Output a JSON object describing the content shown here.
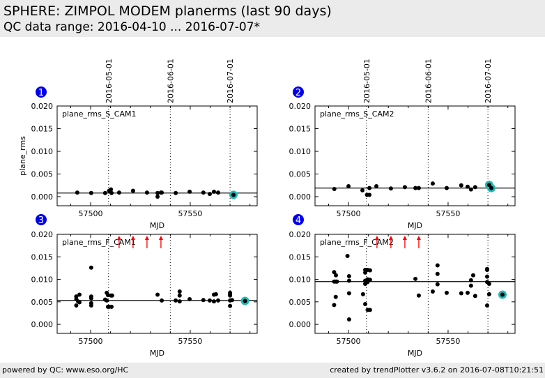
{
  "header": {
    "title": "SPHERE: ZIMPOL MODEM planerms (last 90 days)",
    "subtitle": "QC data range: 2016-04-10 ... 2016-07-07*"
  },
  "footer": {
    "left": "powered by QC: www.eso.org/HC",
    "right": "created by trendPlotter v3.6.2 on 2016-07-08T10:21:51"
  },
  "colors": {
    "point": "#000000",
    "latest_highlight": "#1fb8b8",
    "badge": "#0000ee",
    "outlier_arrow": "#ff0000",
    "median_line": "#000000"
  },
  "chart_data": [
    {
      "type": "scatter",
      "panel_number": "1",
      "label": "plane_rms_S_CAM1",
      "xlabel": "MJD",
      "ylabel": "plane_rms",
      "xlim": [
        57483.2,
        57583.6
      ],
      "ylim": [
        -0.002,
        0.02
      ],
      "xticks": [
        57500,
        57550
      ],
      "xtick_labels": [
        "57500",
        "57550"
      ],
      "xminor_step": 10,
      "yticks": [
        0.0,
        0.005,
        0.01,
        0.015,
        0.02
      ],
      "ytick_labels": [
        "0.000",
        "0.005",
        "0.010",
        "0.015",
        "0.020"
      ],
      "date_markers": [
        {
          "mjd": 57509,
          "label": "2016-05-01"
        },
        {
          "mjd": 57540,
          "label": "2016-06-01"
        },
        {
          "mjd": 57570,
          "label": "2016-07-01"
        }
      ],
      "median": 0.0008,
      "points": [
        [
          57493.3,
          0.0009
        ],
        [
          57500.3,
          0.0008
        ],
        [
          57507.3,
          0.0008
        ],
        [
          57509.3,
          0.0013
        ],
        [
          57510.2,
          0.0016
        ],
        [
          57510.5,
          0.0008
        ],
        [
          57514.3,
          0.0009
        ],
        [
          57521.3,
          0.0013
        ],
        [
          57528.3,
          0.0009
        ],
        [
          57533.6,
          0.0008
        ],
        [
          57533.6,
          0.0
        ],
        [
          57535.3,
          0.0009
        ],
        [
          57535.7,
          0.0009
        ],
        [
          57542.7,
          0.0008
        ],
        [
          57549.7,
          0.0011
        ],
        [
          57556.6,
          0.0009
        ],
        [
          57559.8,
          0.0006
        ],
        [
          57561.9,
          0.0011
        ],
        [
          57564.0,
          0.0009
        ]
      ],
      "latest_points": [
        [
          57571.7,
          0.0004
        ]
      ],
      "outliers_above": []
    },
    {
      "type": "scatter",
      "panel_number": "2",
      "label": "plane_rms_S_CAM2",
      "xlabel": "MJD",
      "ylabel": "",
      "xlim": [
        57483.2,
        57583.6
      ],
      "ylim": [
        -0.002,
        0.02
      ],
      "xticks": [
        57500,
        57550
      ],
      "xtick_labels": [
        "57500",
        "57550"
      ],
      "xminor_step": 10,
      "yticks": [
        0.0,
        0.005,
        0.01,
        0.015,
        0.02
      ],
      "ytick_labels": [
        "0.000",
        "0.005",
        "0.010",
        "0.015",
        "0.020"
      ],
      "date_markers": [
        {
          "mjd": 57509,
          "label": "2016-05-01"
        },
        {
          "mjd": 57540,
          "label": "2016-06-01"
        },
        {
          "mjd": 57570,
          "label": "2016-07-01"
        }
      ],
      "median": 0.0019,
      "points": [
        [
          57492.9,
          0.0017
        ],
        [
          57500.0,
          0.0023
        ],
        [
          57507.0,
          0.0014
        ],
        [
          57509.3,
          0.0004
        ],
        [
          57510.5,
          0.0004
        ],
        [
          57510.5,
          0.0019
        ],
        [
          57514.0,
          0.0023
        ],
        [
          57521.3,
          0.0018
        ],
        [
          57528.3,
          0.0021
        ],
        [
          57533.6,
          0.0019
        ],
        [
          57535.3,
          0.0019
        ],
        [
          57542.3,
          0.0029
        ],
        [
          57549.3,
          0.0019
        ],
        [
          57556.6,
          0.0025
        ],
        [
          57559.8,
          0.0022
        ],
        [
          57561.5,
          0.0016
        ],
        [
          57563.6,
          0.0021
        ]
      ],
      "latest_points": [
        [
          57570.6,
          0.0026
        ],
        [
          57571.7,
          0.0019
        ]
      ],
      "outliers_above": []
    },
    {
      "type": "scatter",
      "panel_number": "3",
      "label": "plane_rms_F_CAM1",
      "xlabel": "MJD",
      "ylabel": "",
      "xlim": [
        57483.2,
        57583.6
      ],
      "ylim": [
        -0.002,
        0.02
      ],
      "xticks": [
        57500,
        57550
      ],
      "xtick_labels": [
        "57500",
        "57550"
      ],
      "xminor_step": 10,
      "yticks": [
        0.0,
        0.005,
        0.01,
        0.015,
        0.02
      ],
      "ytick_labels": [
        "0.000",
        "0.005",
        "0.010",
        "0.015",
        "0.020"
      ],
      "date_markers": [
        {
          "mjd": 57509,
          "label": ""
        },
        {
          "mjd": 57540,
          "label": ""
        },
        {
          "mjd": 57570,
          "label": ""
        }
      ],
      "median": 0.0053,
      "points": [
        [
          57492.8,
          0.0062
        ],
        [
          57492.8,
          0.0056
        ],
        [
          57493.7,
          0.0051
        ],
        [
          57492.8,
          0.0042
        ],
        [
          57494.4,
          0.0066
        ],
        [
          57494.4,
          0.0049
        ],
        [
          57500.3,
          0.0126
        ],
        [
          57500.3,
          0.0062
        ],
        [
          57500.3,
          0.0058
        ],
        [
          57500.3,
          0.0047
        ],
        [
          57500.3,
          0.0042
        ],
        [
          57507.3,
          0.0055
        ],
        [
          57508.1,
          0.007
        ],
        [
          57508.1,
          0.0053
        ],
        [
          57508.7,
          0.0065
        ],
        [
          57508.7,
          0.0039
        ],
        [
          57509.3,
          0.0039
        ],
        [
          57510.2,
          0.0064
        ],
        [
          57510.5,
          0.0039
        ],
        [
          57510.8,
          0.0064
        ],
        [
          57533.6,
          0.0066
        ],
        [
          57535.7,
          0.0053
        ],
        [
          57542.7,
          0.0053
        ],
        [
          57544.7,
          0.0073
        ],
        [
          57544.7,
          0.0064
        ],
        [
          57544.7,
          0.0051
        ],
        [
          57549.7,
          0.0056
        ],
        [
          57556.6,
          0.0054
        ],
        [
          57559.8,
          0.0053
        ],
        [
          57561.9,
          0.0051
        ],
        [
          57561.9,
          0.0066
        ],
        [
          57562.9,
          0.0067
        ],
        [
          57564.0,
          0.0053
        ],
        [
          57570.0,
          0.007
        ],
        [
          57570.0,
          0.0066
        ],
        [
          57570.0,
          0.0064
        ],
        [
          57570.0,
          0.0053
        ],
        [
          57570.0,
          0.0041
        ],
        [
          57571.0,
          0.0054
        ]
      ],
      "latest_points": [
        [
          57577.5,
          0.0052
        ]
      ],
      "outliers_above": [
        57514.3,
        57521.3,
        57528.3,
        57535.3
      ]
    },
    {
      "type": "scatter",
      "panel_number": "4",
      "label": "plane_rms_F_CAM2",
      "xlabel": "MJD",
      "ylabel": "",
      "xlim": [
        57483.2,
        57583.6
      ],
      "ylim": [
        -0.002,
        0.02
      ],
      "xticks": [
        57500,
        57550
      ],
      "xtick_labels": [
        "57500",
        "57550"
      ],
      "xminor_step": 10,
      "yticks": [
        0.0,
        0.005,
        0.01,
        0.015,
        0.02
      ],
      "ytick_labels": [
        "0.000",
        "0.005",
        "0.010",
        "0.015",
        "0.020"
      ],
      "date_markers": [
        {
          "mjd": 57509,
          "label": ""
        },
        {
          "mjd": 57540,
          "label": ""
        },
        {
          "mjd": 57570,
          "label": ""
        }
      ],
      "median": 0.0095,
      "points": [
        [
          57492.8,
          0.0116
        ],
        [
          57492.8,
          0.0095
        ],
        [
          57493.7,
          0.0109
        ],
        [
          57493.7,
          0.0095
        ],
        [
          57494.2,
          0.0095
        ],
        [
          57493.6,
          0.0061
        ],
        [
          57492.8,
          0.0043
        ],
        [
          57499.5,
          0.0152
        ],
        [
          57500.3,
          0.0107
        ],
        [
          57500.3,
          0.0097
        ],
        [
          57500.3,
          0.0069
        ],
        [
          57500.3,
          0.0011
        ],
        [
          57507.3,
          0.0067
        ],
        [
          57508.4,
          0.0121
        ],
        [
          57508.4,
          0.0115
        ],
        [
          57508.4,
          0.0097
        ],
        [
          57508.4,
          0.009
        ],
        [
          57508.4,
          0.0045
        ],
        [
          57509.6,
          0.0121
        ],
        [
          57509.6,
          0.01
        ],
        [
          57509.6,
          0.0094
        ],
        [
          57509.6,
          0.0032
        ],
        [
          57510.8,
          0.012
        ],
        [
          57510.8,
          0.0099
        ],
        [
          57510.8,
          0.0032
        ],
        [
          57533.6,
          0.0101
        ],
        [
          57535.3,
          0.0064
        ],
        [
          57542.3,
          0.0073
        ],
        [
          57544.7,
          0.0131
        ],
        [
          57544.7,
          0.0112
        ],
        [
          57544.7,
          0.0089
        ],
        [
          57549.3,
          0.007
        ],
        [
          57556.6,
          0.0069
        ],
        [
          57559.8,
          0.007
        ],
        [
          57561.5,
          0.0098
        ],
        [
          57561.5,
          0.0086
        ],
        [
          57562.6,
          0.0109
        ],
        [
          57563.6,
          0.0063
        ],
        [
          57569.6,
          0.0123
        ],
        [
          57569.6,
          0.0121
        ],
        [
          57569.6,
          0.0106
        ],
        [
          57569.6,
          0.0094
        ],
        [
          57569.6,
          0.0042
        ],
        [
          57570.6,
          0.009
        ],
        [
          57570.6,
          0.0067
        ]
      ],
      "latest_points": [
        [
          57577.3,
          0.0066
        ]
      ],
      "outliers_above": [
        57514.3,
        57521.3,
        57528.3,
        57535.3
      ]
    }
  ]
}
